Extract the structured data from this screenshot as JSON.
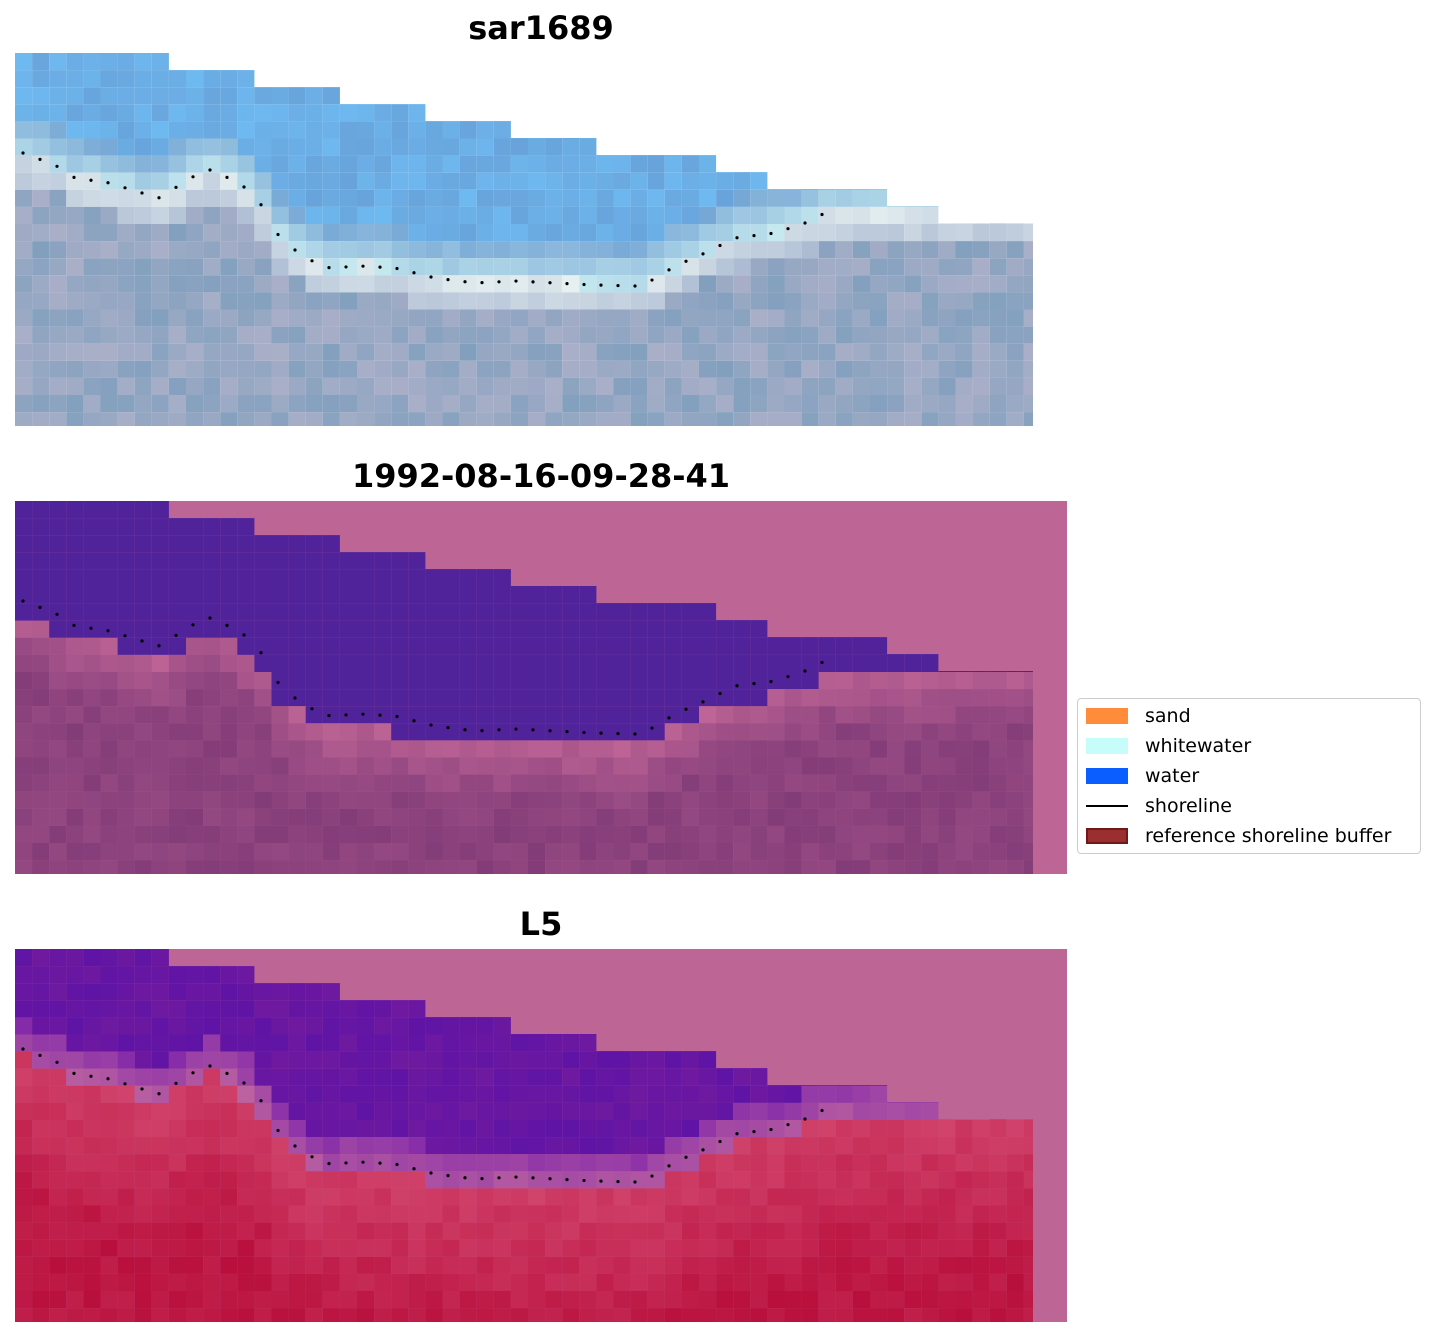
{
  "panels": [
    {
      "title": "sar1689",
      "style": "rgb"
    },
    {
      "title": "1992-08-16-09-28-41",
      "style": "classified"
    },
    {
      "title": "L5",
      "style": "index"
    }
  ],
  "legend": {
    "items": [
      {
        "label": "sand",
        "color": "#ff8c3a",
        "kind": "patch"
      },
      {
        "label": "whitewater",
        "color": "#c6fdfb",
        "kind": "patch"
      },
      {
        "label": "water",
        "color": "#0a5eff",
        "kind": "patch"
      },
      {
        "label": "shoreline",
        "color": "#000000",
        "kind": "line"
      },
      {
        "label": "reference shoreline buffer",
        "color": "#9b2f2f",
        "edge": "#6e1a1a",
        "kind": "patch"
      }
    ]
  },
  "colors": {
    "mask": "#bd6696",
    "water_class": "#51239b",
    "shoreline_dots": "#000000"
  }
}
